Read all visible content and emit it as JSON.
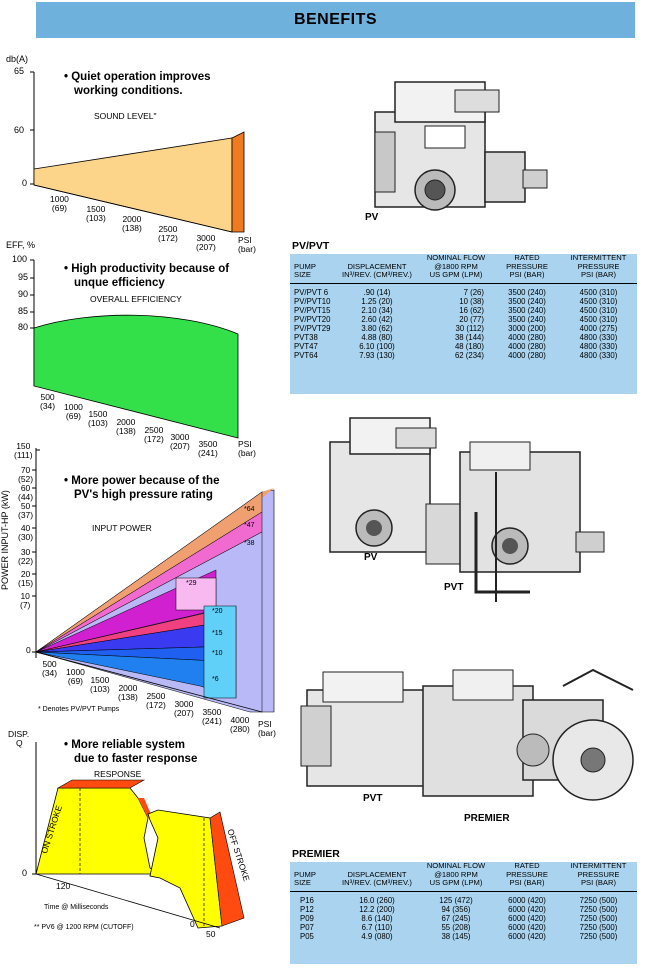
{
  "header": {
    "title": "BENEFITS"
  },
  "sound": {
    "unit": "db(A)",
    "ticks": [
      "65",
      "60",
      "0"
    ],
    "bullet": [
      "• Quiet operation improves",
      "working conditions."
    ],
    "series_label": "SOUND LEVEL\"",
    "x_ticks": [
      [
        "1000",
        "(69)"
      ],
      [
        "1500",
        "(103)"
      ],
      [
        "2000",
        "(138)"
      ],
      [
        "2500",
        "(172)"
      ],
      [
        "3000",
        "(207)"
      ]
    ],
    "x_unit": [
      "PSI",
      "(bar)"
    ]
  },
  "efficiency": {
    "unit": "EFF, %",
    "ticks": [
      "100",
      "95",
      "90",
      "85",
      "80"
    ],
    "bullet": [
      "• High productivity because of",
      "unque efficiency"
    ],
    "series_label": "OVERALL EFFICIENCY",
    "x_ticks": [
      [
        "500",
        "(34)"
      ],
      [
        "1000",
        "(69)"
      ],
      [
        "1500",
        "(103)"
      ],
      [
        "2000",
        "(138)"
      ],
      [
        "2500",
        "(172)"
      ],
      [
        "3000",
        "(207)"
      ],
      [
        "3500",
        "(241)"
      ]
    ],
    "x_unit": [
      "PSI",
      "(bar)"
    ]
  },
  "power": {
    "y_axis_label": "POWER INPUT-HP (kW)",
    "ticks": [
      [
        "150",
        "(111)"
      ],
      [
        "70",
        "(52)"
      ],
      [
        "60",
        "(44)"
      ],
      [
        "50",
        "(37)"
      ],
      [
        "40",
        "(30)"
      ],
      [
        "30",
        "(22)"
      ],
      [
        "20",
        "(15)"
      ],
      [
        "10",
        "(7)"
      ],
      [
        "0",
        ""
      ]
    ],
    "bullet": [
      "• More power because of the",
      "PV's high pressure rating"
    ],
    "series_label": "INPUT POWER",
    "pump_labels": [
      "*64",
      "*47",
      "*38",
      "*29",
      "*20",
      "*15",
      "*10",
      "*6"
    ],
    "x_ticks": [
      [
        "500",
        "(34)"
      ],
      [
        "1000",
        "(69)"
      ],
      [
        "1500",
        "(103)"
      ],
      [
        "2000",
        "(138)"
      ],
      [
        "2500",
        "(172)"
      ],
      [
        "3000",
        "(207)"
      ],
      [
        "3500",
        "(241)"
      ],
      [
        "4000",
        "(280)"
      ]
    ],
    "x_unit": [
      "PSI",
      "(bar)"
    ],
    "footnote": "* Denotes PV/PVT Pumps"
  },
  "response": {
    "unit": [
      "DISP.",
      "Q"
    ],
    "ticks": [
      "0"
    ],
    "bullet": [
      "• More reliable system",
      "due to faster response"
    ],
    "series_label": "RESPONSE",
    "on_label": "ON STROKE",
    "off_label": "OFF STROKE",
    "x_left": "120",
    "x_right": [
      "0",
      "50"
    ],
    "time_label": "Time @ Milliseconds",
    "footnote": "** PV6 @ 1200 RPM (CUTOFF)"
  },
  "images": {
    "pv": "PV",
    "pv2": "PV",
    "pvt": "PVT",
    "pvt2": "PVT",
    "premier": "PREMIER"
  },
  "pv_table": {
    "title": "PV/PVT",
    "headers": [
      "PUMP\nSIZE",
      "DISPLACEMENT\nIN³/REV. (CM³/REV.)",
      "NOMINAL FLOW\n@1800 RPM\nUS GPM (LPM)",
      "RATED\nPRESSURE\nPSI (BAR)",
      "INTERMITTENT\nPRESSURE\nPSI (BAR)"
    ],
    "rows": [
      [
        "PV/PVT 6",
        ".90 (14)",
        "7 (26)",
        "3500 (240)",
        "4500 (310)"
      ],
      [
        "PV/PVT10",
        "1.25 (20)",
        "10 (38)",
        "3500 (240)",
        "4500 (310)"
      ],
      [
        "PV/PVT15",
        "2.10 (34)",
        "16 (62)",
        "3500 (240)",
        "4500 (310)"
      ],
      [
        "PV/PVT20",
        "2.60 (42)",
        "20 (77)",
        "3500 (240)",
        "4500 (310)"
      ],
      [
        "PV/PVT29",
        "3.80 (62)",
        "30 (112)",
        "3000 (200)",
        "4000 (275)"
      ],
      [
        "PVT38",
        "4.88 (80)",
        "38 (144)",
        "4000 (280)",
        "4800 (330)"
      ],
      [
        "PVT47",
        "6.10 (100)",
        "48 (180)",
        "4000 (280)",
        "4800 (330)"
      ],
      [
        "PVT64",
        "7.93 (130)",
        "62 (234)",
        "4000 (280)",
        "4800 (330)"
      ]
    ]
  },
  "premier_table": {
    "title": "PREMIER",
    "headers": [
      "PUMP\nSIZE",
      "DISPLACEMENT\nIN³/REV. (CM³/REV.)",
      "NOMINAL FLOW\n@1800 RPM\nUS GPM (LPM)",
      "RATED\nPRESSURE\nPSI (BAR)",
      "INTERMITTENT\nPRESSURE\nPSI (BAR)"
    ],
    "rows": [
      [
        "P16",
        "16.0 (260)",
        "125 (472)",
        "6000 (420)",
        "7250 (500)"
      ],
      [
        "P12",
        "12.2 (200)",
        "94 (356)",
        "6000 (420)",
        "7250 (500)"
      ],
      [
        "P09",
        "8.6 (140)",
        "67 (245)",
        "6000 (420)",
        "7250 (500)"
      ],
      [
        "P07",
        "6.7 (110)",
        "55 (208)",
        "6000 (420)",
        "7250 (500)"
      ],
      [
        "P05",
        "4.9 (080)",
        "38 (145)",
        "6000 (420)",
        "7250 (500)"
      ]
    ]
  },
  "colors": {
    "header_bg": "#6eb1dc",
    "table_bg": "#a9d3ee",
    "sound_fill": "#fcd48a",
    "sound_edge": "#f07a20",
    "eff_fill": "#33e04a",
    "response_fill": "#ffff00",
    "response_edge": "#ff4b10"
  }
}
